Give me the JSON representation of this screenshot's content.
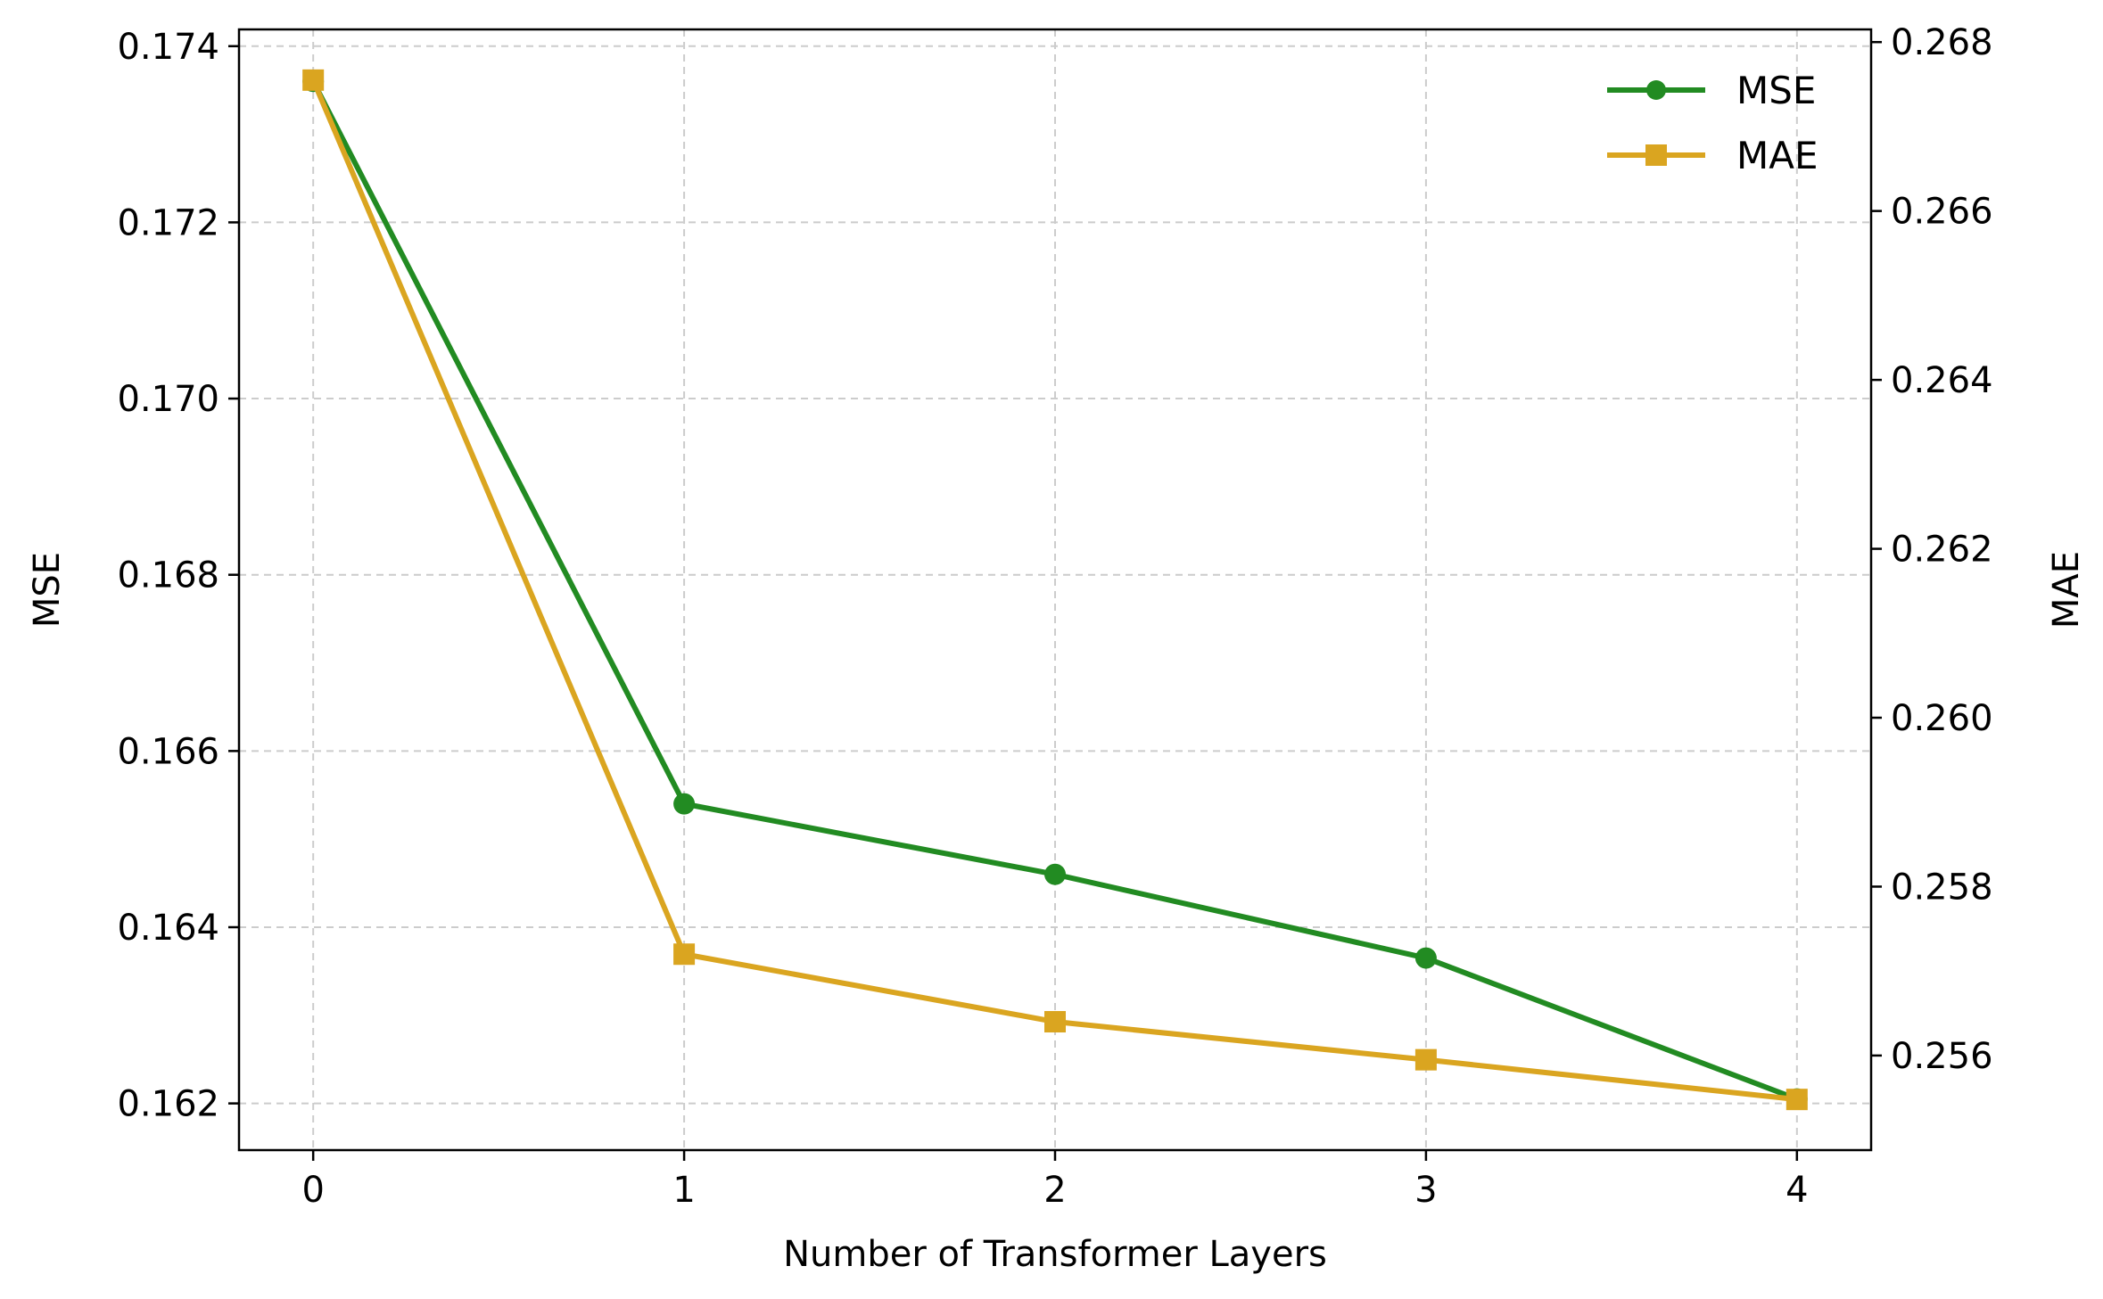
{
  "chart_data": {
    "type": "line",
    "x": [
      0,
      1,
      2,
      3,
      4
    ],
    "xlabel": "Number of Transformer Layers",
    "xticks": [
      "0",
      "1",
      "2",
      "3",
      "4"
    ],
    "xlim": [
      -0.2,
      4.2
    ],
    "grid": true,
    "legend": "top-right",
    "series": [
      {
        "name": "MSE",
        "axis": "left",
        "marker": "circle",
        "color": "#228B22",
        "values": [
          0.1736,
          0.1654,
          0.1646,
          0.16365,
          0.16205
        ]
      },
      {
        "name": "MAE",
        "axis": "right",
        "marker": "square",
        "color": "#DAA520",
        "values": [
          0.26755,
          0.2572,
          0.2564,
          0.25595,
          0.25548
        ]
      }
    ],
    "y_left": {
      "label": "MSE",
      "lim": [
        0.16147,
        0.17419
      ],
      "ticks": [
        "0.162",
        "0.164",
        "0.166",
        "0.168",
        "0.170",
        "0.172",
        "0.174"
      ],
      "tick_values": [
        0.162,
        0.164,
        0.166,
        0.168,
        0.17,
        0.172,
        0.174
      ]
    },
    "y_right": {
      "label": "MAE",
      "lim": [
        0.25488,
        0.26815
      ],
      "ticks": [
        "0.256",
        "0.258",
        "0.260",
        "0.262",
        "0.264",
        "0.266",
        "0.268"
      ],
      "tick_values": [
        0.256,
        0.258,
        0.26,
        0.262,
        0.264,
        0.266,
        0.268
      ]
    }
  }
}
